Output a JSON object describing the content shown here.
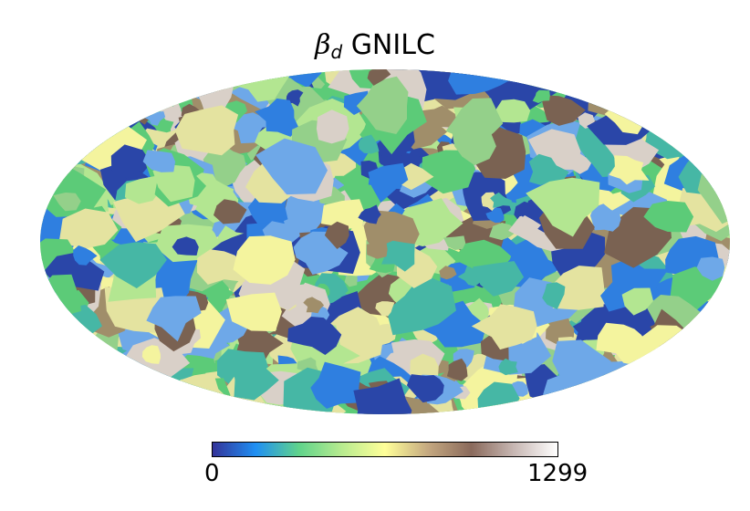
{
  "title": {
    "symbol": "β",
    "subscript": "d",
    "text": "GNILC"
  },
  "colorbar": {
    "min": "0",
    "max": "1299",
    "colormap": "terrain",
    "stops": [
      "#333399",
      "#1f8ff3",
      "#5fd38b",
      "#b8eb8f",
      "#ffff99",
      "#c4a880",
      "#8a6a5c",
      "#c8b8b4",
      "#ffffff"
    ]
  },
  "map": {
    "projection": "mollweide",
    "patch_palette": [
      "#2a46a8",
      "#2f7fe0",
      "#46b7a5",
      "#5ccb78",
      "#b3e691",
      "#e4e3a0",
      "#f4f49e",
      "#a08e6a",
      "#7a6252",
      "#d9d0c8",
      "#6ea8e8",
      "#94d08a"
    ]
  }
}
